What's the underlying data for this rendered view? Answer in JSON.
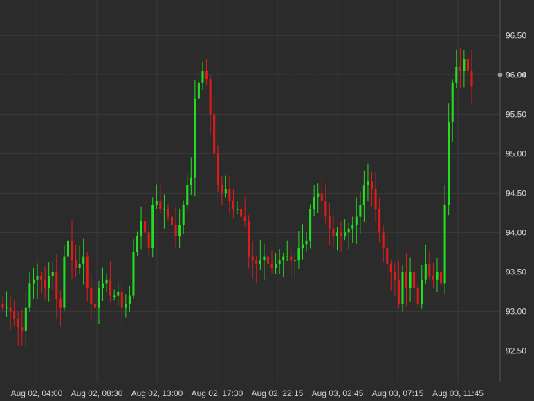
{
  "chart_data": {
    "type": "candlestick",
    "grid": true,
    "colors": {
      "up": "#22dd22",
      "down": "#e01b1b",
      "background": "#2b2b2b",
      "grid": "#3a3a3a"
    },
    "ylim": [
      92.1,
      96.95
    ],
    "y_ticks": [
      "92.50",
      "93.00",
      "93.50",
      "94.00",
      "94.50",
      "95.00",
      "95.50",
      "96.00",
      "96.50"
    ],
    "current_price_label": "96.04",
    "current_price": 96.0,
    "x_ticks": [
      "Aug 02, 04:00",
      "Aug 02, 08:30",
      "Aug 02, 13:00",
      "Aug 02, 17:30",
      "Aug 02, 22:15",
      "Aug 03, 02:45",
      "Aug 03, 07:15",
      "Aug 03, 11:45"
    ],
    "close_series": [
      93.05,
      93.05,
      93.0,
      92.9,
      92.8,
      92.75,
      93.05,
      93.35,
      93.4,
      93.45,
      93.4,
      93.3,
      93.45,
      93.5,
      93.15,
      93.05,
      93.7,
      93.9,
      93.65,
      93.55,
      93.6,
      93.7,
      93.3,
      93.1,
      93.05,
      93.3,
      93.35,
      93.4,
      93.2,
      93.2,
      93.25,
      93.05,
      93.1,
      93.2,
      93.75,
      93.95,
      94.15,
      94.0,
      93.8,
      94.35,
      94.4,
      94.3,
      94.3,
      94.2,
      94.1,
      93.95,
      94.1,
      94.35,
      94.6,
      94.7,
      95.7,
      95.9,
      96.05,
      95.95,
      95.5,
      95.0,
      94.6,
      94.5,
      94.55,
      94.4,
      94.3,
      94.3,
      94.2,
      94.15,
      93.7,
      93.65,
      93.6,
      93.65,
      93.7,
      93.6,
      93.55,
      93.6,
      93.65,
      93.7,
      93.7,
      93.65,
      93.65,
      93.8,
      93.85,
      93.9,
      94.3,
      94.45,
      94.5,
      94.4,
      94.2,
      94.05,
      93.95,
      94.0,
      93.95,
      94.0,
      94.05,
      94.1,
      94.2,
      94.35,
      94.6,
      94.65,
      94.55,
      94.3,
      94.0,
      93.8,
      93.6,
      93.5,
      93.4,
      93.1,
      93.5,
      93.3,
      93.5,
      93.3,
      93.1,
      93.4,
      93.6,
      93.45,
      93.4,
      93.5,
      93.35,
      94.35,
      95.4,
      95.9,
      96.1,
      96.05,
      96.2,
      96.05,
      95.85
    ]
  }
}
